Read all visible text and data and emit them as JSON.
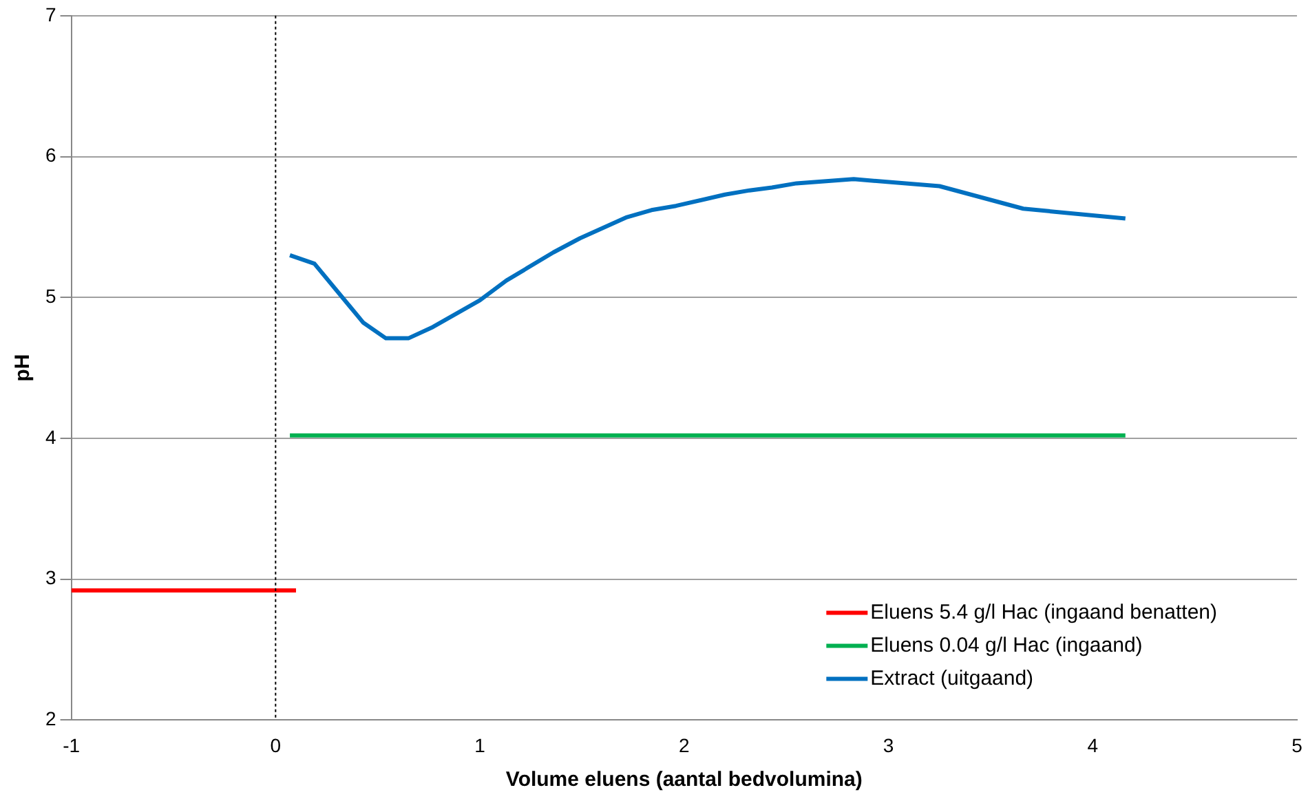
{
  "chart_data": {
    "type": "line",
    "xlabel": "Volume eluens (aantal bedvolumina)",
    "ylabel": "pH",
    "xlim": [
      -1,
      5
    ],
    "xticks": [
      -1,
      0,
      1,
      2,
      3,
      4,
      5
    ],
    "ylim": [
      2,
      7
    ],
    "yticks": [
      2,
      3,
      4,
      5,
      6,
      7
    ],
    "grid": "y",
    "legend": "bottom right",
    "marker": "none",
    "line_style": "solid",
    "series": [
      {
        "name": "Eluens 5.4 g/l Hac (ingaand benatten)",
        "color": "#ff0000",
        "x": [
          -1,
          0.1
        ],
        "values": [
          2.92,
          2.92
        ]
      },
      {
        "name": "Eluens 0.04 g/l Hac (ingaand)",
        "color": "#00b050",
        "x": [
          0.07,
          4.16
        ],
        "values": [
          4.02,
          4.02
        ]
      },
      {
        "name": "Extract (uitgaand)",
        "color": "#0070c0",
        "x": [
          0.07,
          0.19,
          0.43,
          0.54,
          0.65,
          0.77,
          1.0,
          1.13,
          1.36,
          1.49,
          1.72,
          1.84,
          1.96,
          2.2,
          2.32,
          2.43,
          2.55,
          2.83,
          3.25,
          3.66,
          4.16
        ],
        "values": [
          5.3,
          5.24,
          4.82,
          4.71,
          4.71,
          4.79,
          4.98,
          5.12,
          5.32,
          5.42,
          5.57,
          5.62,
          5.65,
          5.73,
          5.76,
          5.78,
          5.81,
          5.84,
          5.79,
          5.63,
          5.56
        ]
      }
    ],
    "ref_lines": [
      {
        "axis": "x",
        "value": 0,
        "label": null,
        "color": "#000000",
        "line_style": "dotted"
      }
    ]
  }
}
